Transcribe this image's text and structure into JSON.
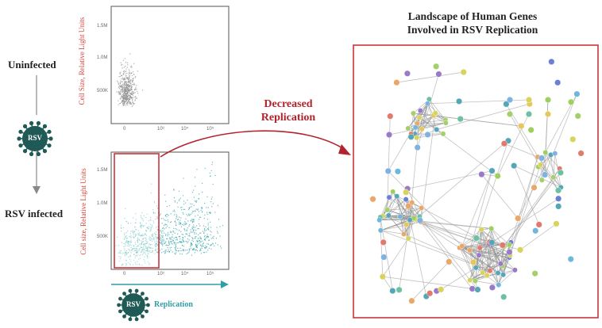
{
  "labels": {
    "uninfected": "Uninfected",
    "rsv_infected": "RSV infected",
    "virus_text": "RSV",
    "decreased_replication": [
      "Decreased",
      "Replication"
    ],
    "network_title": [
      "Landscape of Human Genes",
      "Involved in RSV Replication"
    ],
    "replication_axis": "Replication"
  },
  "plot_top": {
    "ylabel": "Cell Size, Relative Light Units",
    "yticks": [
      "1.5M",
      "1.0M",
      "500K"
    ],
    "xticks": [
      "0",
      "10³",
      "10⁴",
      "10⁵"
    ]
  },
  "plot_bottom": {
    "ylabel": "Cell size, Relative Light Units",
    "yticks": [
      "1.5M",
      "1.0M",
      "500K"
    ],
    "xticks": [
      "0",
      "10³",
      "10⁴",
      "10⁵"
    ]
  },
  "colors": {
    "label_red": "#b3232b",
    "teal": "#2f9fa6",
    "virus": "#1f5a57",
    "scatter_gray": "#8f8f8f"
  },
  "icons": {
    "virus": "virus-icon",
    "arrow": "curved-arrow"
  }
}
